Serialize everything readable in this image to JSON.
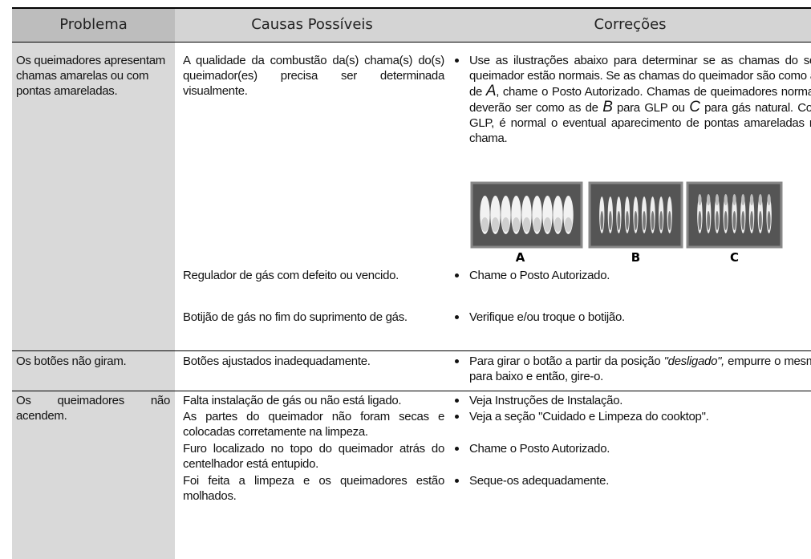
{
  "table": {
    "headers": [
      "Problema",
      "Causas Possíveis",
      "Correções"
    ],
    "rows": [
      {
        "problem": "Os queimadores apresentam chamas amarelas ou com pontas amareladas.",
        "items": [
          {
            "cause": "A qualidade da combustão da(s) chama(s) do(s) queimador(es) precisa ser determinada visualmente.",
            "correction": [
              "Use as ilustrações abaixo para determinar se as chamas do seu queimador estão normais. Se as chamas do queimador são como as de ",
              "A",
              ", chame o Posto Autorizado. Chamas de queimadores normais deverão ser como as de ",
              "B",
              " para GLP ou ",
              "C",
              " para gás natural. Com GLP, é normal o eventual aparecimento de pontas amareladas na chama."
            ]
          },
          {
            "cause": "Regulador de gás com defeito ou vencido.",
            "correction": [
              "Chame o Posto Autorizado."
            ]
          },
          {
            "cause": "Botijão de gás no fim do suprimento de gás.",
            "correction": [
              "Verifique e/ou troque o botijão."
            ]
          }
        ]
      },
      {
        "problem": "Os botões não giram.",
        "items": [
          {
            "cause": "Botões ajustados inadequadamente.",
            "correction": [
              "Para girar o botão a partir da posição ",
              "\"desligado\",",
              " empurre o mesmo para baixo e então, gire-o."
            ]
          }
        ]
      },
      {
        "problem": "Os queimadores não acendem.",
        "items": [
          {
            "cause": "Falta instalação de gás ou não está ligado.",
            "correction": [
              "Veja Instruções de Instalação."
            ]
          },
          {
            "cause": "As partes do queimador não foram secas e colocadas corretamente na limpeza.",
            "correction": [
              "Veja a seção \"Cuidado e Limpeza do cooktop\"."
            ]
          },
          {
            "cause": "Furo localizado no topo do queimador atrás do centelhador está entupido.",
            "correction": [
              "Chame o Posto Autorizado."
            ]
          },
          {
            "cause": "Foi feita a limpeza e os queimadores estão molhados.",
            "correction": [
              "Seque-os adequadamente."
            ]
          }
        ]
      }
    ]
  },
  "figure": {
    "labels": [
      "A",
      "B",
      "C"
    ]
  }
}
